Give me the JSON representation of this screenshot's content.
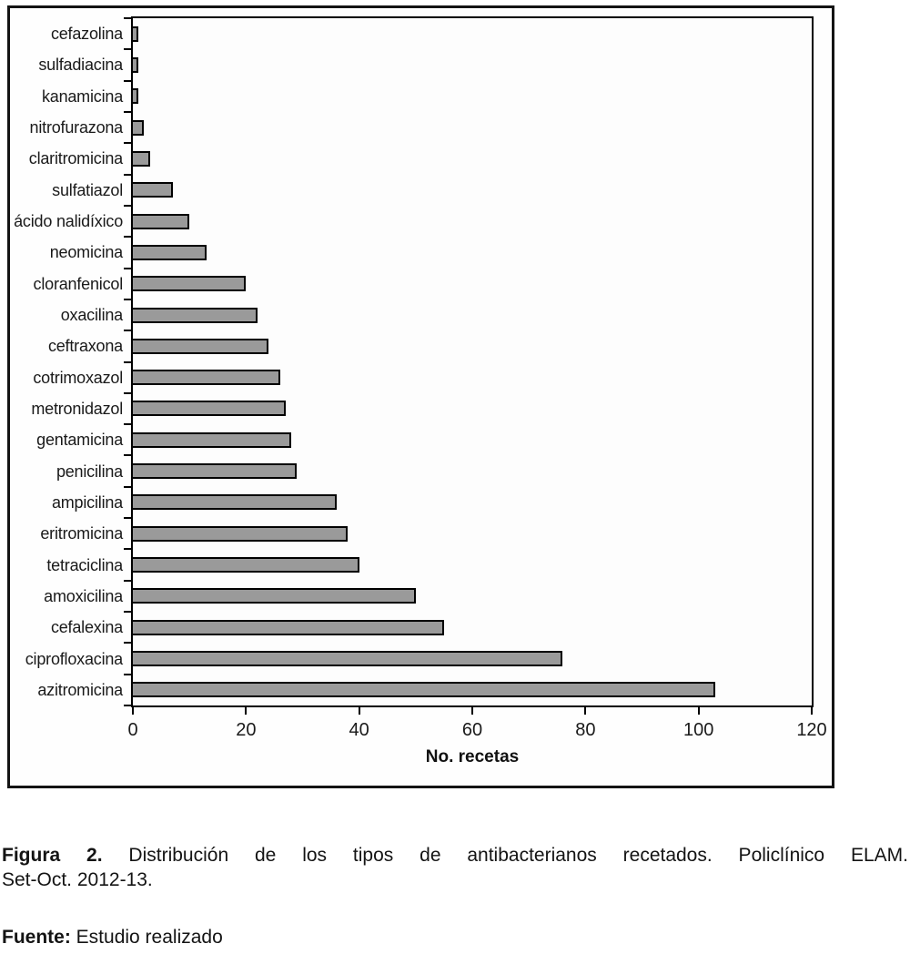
{
  "figure": {
    "caption_bold": "Figura 2.",
    "caption_rest": "Distribución de los tipos de antibacterianos recetados. Policlínico ELAM.",
    "caption_line2": "Set-Oct. 2012-13.",
    "source_bold": "Fuente:",
    "source_text": "Estudio realizado"
  },
  "chart_data": {
    "type": "bar",
    "orientation": "horizontal",
    "title": "",
    "xlabel": "No. recetas",
    "ylabel": "",
    "xlim": [
      0,
      120
    ],
    "x_ticks": [
      0,
      20,
      40,
      60,
      80,
      100,
      120
    ],
    "grid": false,
    "legend": false,
    "bar_color": "#9a9a9a",
    "bar_border_color": "#000000",
    "categories": [
      "cefazolina",
      "sulfadiacina",
      "kanamicina",
      "nitrofurazona",
      "claritromicina",
      "sulfatiazol",
      "ácido nalidíxico",
      "neomicina",
      "cloranfenicol",
      "oxacilina",
      "ceftraxona",
      "cotrimoxazol",
      "metronidazol",
      "gentamicina",
      "penicilina",
      "ampicilina",
      "eritromicina",
      "tetraciclina",
      "amoxicilina",
      "cefalexina",
      "ciprofloxacina",
      "azitromicina"
    ],
    "values": [
      1,
      1,
      1,
      2,
      3,
      7,
      10,
      13,
      20,
      22,
      24,
      26,
      27,
      28,
      29,
      36,
      38,
      40,
      50,
      55,
      76,
      103
    ]
  }
}
